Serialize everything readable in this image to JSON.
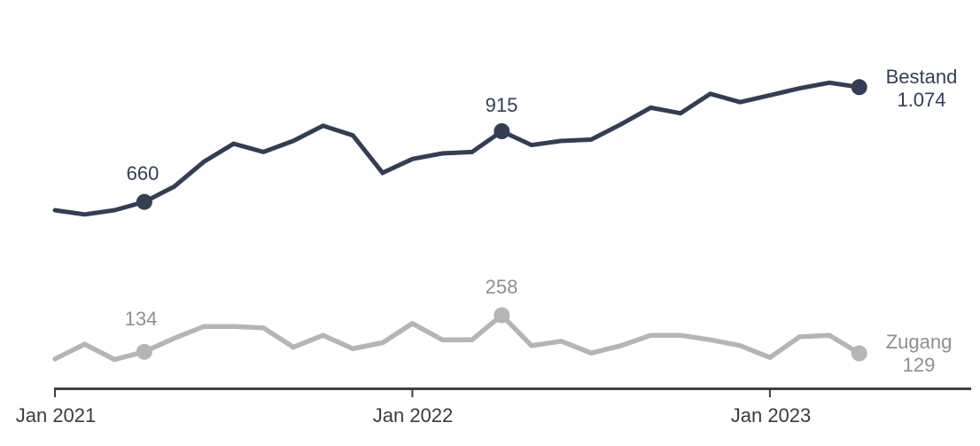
{
  "chart_data": {
    "type": "line",
    "title": "",
    "xlabel": "",
    "ylabel": "",
    "grid": false,
    "legend_position": "end-of-line labels",
    "x": [
      "2021-01",
      "2021-02",
      "2021-03",
      "2021-04",
      "2021-05",
      "2021-06",
      "2021-07",
      "2021-08",
      "2021-09",
      "2021-10",
      "2021-11",
      "2021-12",
      "2022-01",
      "2022-02",
      "2022-03",
      "2022-04",
      "2022-05",
      "2022-06",
      "2022-07",
      "2022-08",
      "2022-09",
      "2022-10",
      "2022-11",
      "2022-12",
      "2023-01",
      "2023-02",
      "2023-03",
      "2023-04"
    ],
    "x_axis_ticks": [
      {
        "label": "Jan 2021",
        "month_index": 0
      },
      {
        "label": "Jan 2022",
        "month_index": 12
      },
      {
        "label": "Jan 2023",
        "month_index": 24
      }
    ],
    "axis_color": "#404040",
    "series": [
      {
        "name": "Bestand",
        "color": "#333e55",
        "values": [
          630,
          615,
          630,
          660,
          715,
          805,
          870,
          840,
          880,
          935,
          900,
          765,
          815,
          835,
          840,
          915,
          865,
          880,
          885,
          940,
          1000,
          980,
          1050,
          1020,
          1045,
          1070,
          1090,
          1074
        ],
        "marked_points": [
          {
            "index": 3,
            "month": "2021-04",
            "label": "660"
          },
          {
            "index": 15,
            "month": "2022-04",
            "label": "915"
          },
          {
            "index": 27,
            "month": "2023-04",
            "label": "1.074"
          }
        ],
        "end_label": {
          "line1": "Bestand",
          "line2": "1.074"
        }
      },
      {
        "name": "Zugang",
        "color": "#b5b5b5",
        "values": [
          110,
          160,
          108,
          134,
          180,
          220,
          220,
          215,
          150,
          190,
          145,
          165,
          230,
          175,
          175,
          258,
          155,
          170,
          130,
          155,
          190,
          190,
          175,
          155,
          115,
          185,
          190,
          129
        ],
        "marked_points": [
          {
            "index": 3,
            "month": "2021-04",
            "label": "134"
          },
          {
            "index": 15,
            "month": "2022-04",
            "label": "258"
          },
          {
            "index": 27,
            "month": "2023-04",
            "label": "129"
          }
        ],
        "end_label": {
          "line1": "Zugang",
          "line2": "129"
        }
      }
    ]
  }
}
